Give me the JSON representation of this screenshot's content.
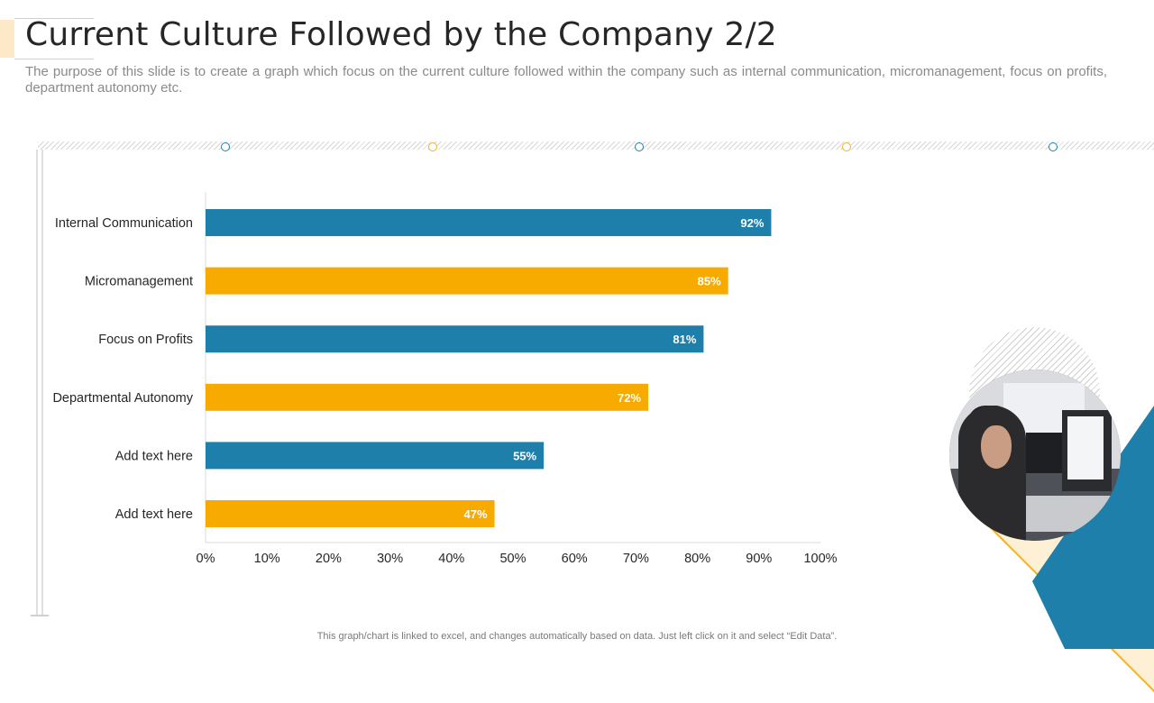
{
  "slide": {
    "title": "Current Culture Followed by the Company 2/2",
    "subtitle": "The purpose of this slide is to create a graph which focus on the current culture followed within the company such as internal communication, micromanagement, focus on profits, department autonomy etc.",
    "footnote": "This graph/chart is linked to excel,  and changes automatically based on data. Just left click on it and select “Edit Data”."
  },
  "colors": {
    "blue": "#1f7fab",
    "gold": "#f7aa00",
    "accent_light": "#fde9c8"
  },
  "photo": {
    "description": "person-at-computer-photo"
  },
  "chart_data": {
    "type": "bar",
    "orientation": "horizontal",
    "categories": [
      "Internal Communication",
      "Micromanagement",
      "Focus on Profits",
      "Departmental Autonomy",
      "Add text here",
      "Add text here"
    ],
    "values": [
      92,
      85,
      81,
      72,
      55,
      47
    ],
    "data_labels": [
      "92%",
      "85%",
      "81%",
      "72%",
      "55%",
      "47%"
    ],
    "bar_colors": [
      "#1f7fab",
      "#f7aa00",
      "#1f7fab",
      "#f7aa00",
      "#1f7fab",
      "#f7aa00"
    ],
    "xlim": [
      0,
      100
    ],
    "x_ticks": [
      "0%",
      "10%",
      "20%",
      "30%",
      "40%",
      "50%",
      "60%",
      "70%",
      "80%",
      "90%",
      "100%"
    ],
    "title": "",
    "xlabel": "",
    "ylabel": "",
    "grid": false,
    "legend": "none"
  }
}
